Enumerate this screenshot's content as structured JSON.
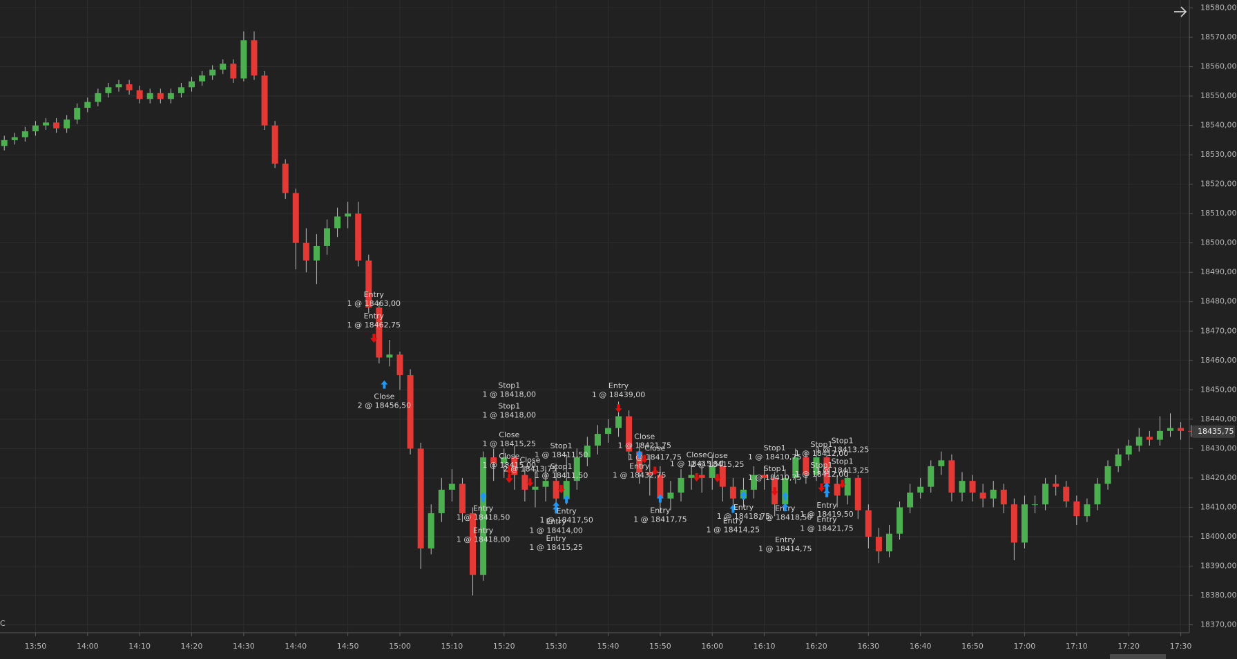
{
  "chart_data": {
    "type": "candlestick",
    "categories": [
      null,
      null,
      null,
      "13:50",
      null,
      null,
      null,
      null,
      "14:00",
      null,
      null,
      null,
      null,
      "14:10",
      null,
      null,
      null,
      null,
      "14:20",
      null,
      null,
      null,
      null,
      "14:30",
      null,
      null,
      null,
      null,
      "14:40",
      null,
      null,
      null,
      null,
      "14:50",
      null,
      null,
      null,
      null,
      "15:00",
      null,
      null,
      null,
      null,
      "15:10",
      null,
      null,
      null,
      null,
      "15:20",
      null,
      null,
      null,
      null,
      "15:30",
      null,
      null,
      null,
      null,
      "15:40",
      null,
      null,
      null,
      null,
      "15:50",
      null,
      null,
      null,
      null,
      "16:00",
      null,
      null,
      null,
      null,
      "16:10",
      null,
      null,
      null,
      null,
      "16:20",
      null,
      null,
      null,
      null,
      "16:30",
      null,
      null,
      null,
      null,
      "16:40",
      null,
      null,
      null,
      null,
      "16:50",
      null,
      null,
      null,
      null,
      "17:00",
      null,
      null,
      null,
      null,
      "17:10",
      null,
      null,
      null,
      null,
      "17:20",
      null,
      null,
      null,
      null,
      "17:30",
      null
    ],
    "open": [
      18533,
      18535,
      18536,
      18538,
      18540,
      18541,
      18539,
      18542,
      18546,
      18548,
      18551,
      18553,
      18554,
      18552,
      18549,
      18551,
      18549,
      18551,
      18553,
      18555,
      18557,
      18559,
      18561,
      18556,
      18569,
      18557,
      18540,
      18527,
      18517,
      18500,
      18494,
      18499,
      18505,
      18509,
      18510,
      18494,
      18478,
      18461,
      18462,
      18455,
      18430,
      18396,
      18408,
      18416,
      18418,
      18408,
      18387,
      18427,
      18425,
      18427,
      18421,
      18416,
      18417,
      18419,
      18413,
      18419,
      18427,
      18431,
      18435,
      18437,
      18441,
      18429,
      18422,
      18421,
      18413,
      18415,
      18420,
      18421,
      18420,
      18424,
      18417,
      18413,
      18416,
      18421,
      18420,
      18411,
      18420,
      18427,
      18421,
      18427,
      18418,
      18414,
      18420,
      18409,
      18400,
      18395,
      18401,
      18410,
      18415,
      18417,
      18424,
      18426,
      18415,
      18419,
      18415,
      18413,
      18416,
      18411,
      18398,
      18411,
      18411,
      18418,
      18417,
      18412,
      18407,
      18411,
      18418,
      18424,
      18428,
      18431,
      18434,
      18433,
      18436,
      18437,
      18436
    ],
    "high": [
      18536.5,
      18537.5,
      18539.5,
      18541.5,
      18542.5,
      18542.5,
      18543.5,
      18547.5,
      18549.5,
      18552.5,
      18554.5,
      18555.5,
      18555.5,
      18553.5,
      18552.5,
      18552.5,
      18552.5,
      18554.5,
      18556.5,
      18558.5,
      18560.5,
      18562.5,
      18562.5,
      18572,
      18572,
      18558.5,
      18541.5,
      18528.5,
      18518.5,
      18505,
      18503,
      18508,
      18512,
      18514,
      18514,
      18496,
      18480,
      18467,
      18463,
      18457,
      18432,
      18411,
      18420,
      18423,
      18420,
      18410,
      18429,
      18430,
      18430,
      18431,
      18424,
      18423,
      18424,
      18423,
      18428,
      18430,
      18434,
      18438,
      18440,
      18446,
      18443,
      18432,
      18428,
      18424,
      18419,
      18423,
      18425,
      18424,
      18428,
      18426,
      18420,
      18420,
      18424,
      18424,
      18422,
      18423,
      18430,
      18429,
      18430,
      18428,
      18421,
      18423,
      18421,
      18411,
      18403,
      18404,
      18412,
      18418,
      18420,
      18426,
      18429,
      18428,
      18422,
      18421,
      18418,
      18419,
      18418,
      18413,
      18414,
      18414,
      18420,
      18421,
      18419,
      18414,
      18413,
      18420,
      18426,
      18430,
      18433,
      18437,
      18436,
      18441,
      18442,
      18439,
      18438
    ],
    "low": [
      18531.5,
      18533.5,
      18534.5,
      18536.5,
      18538.5,
      18537.5,
      18537.5,
      18540.5,
      18544.5,
      18546.5,
      18549.5,
      18551.5,
      18550.5,
      18547.5,
      18547.5,
      18547.5,
      18547.5,
      18549.5,
      18551.5,
      18553.5,
      18555.5,
      18557.5,
      18554.5,
      18555,
      18555.5,
      18538.5,
      18525.5,
      18515,
      18491,
      18490,
      18486,
      18496,
      18502,
      18505,
      18492,
      18476,
      18459,
      18458,
      18450,
      18428,
      18389,
      18394,
      18405,
      18412,
      18405,
      18380,
      18385,
      18419,
      18420,
      18416,
      18412,
      18410,
      18412,
      18408,
      18411,
      18416,
      18424,
      18428,
      18432,
      18434,
      18426,
      18418,
      18414,
      18408,
      18409,
      18412,
      18416,
      18415,
      18416,
      18412,
      18409,
      18410,
      18413,
      18416,
      18407,
      18409,
      18418,
      18418,
      18419,
      18414,
      18410,
      18411,
      18406,
      18396,
      18391,
      18393,
      18399,
      18408,
      18413,
      18415,
      18421,
      18412,
      18412,
      18412,
      18410,
      18410,
      18408,
      18392,
      18396,
      18408,
      18409,
      18414,
      18410,
      18404,
      18405,
      18409,
      18416,
      18422,
      18426,
      18429,
      18431,
      18431,
      18434,
      18433,
      18434
    ],
    "close": [
      18535,
      18536,
      18538,
      18540,
      18541,
      18539,
      18542,
      18546,
      18548,
      18551,
      18553,
      18554,
      18552,
      18549,
      18551,
      18549,
      18551,
      18553,
      18555,
      18557,
      18559,
      18561,
      18556,
      18569,
      18557,
      18540,
      18527,
      18517,
      18500,
      18494,
      18499,
      18505,
      18509,
      18510,
      18494,
      18478,
      18461,
      18462,
      18455,
      18430,
      18396,
      18408,
      18416,
      18418,
      18408,
      18387,
      18427,
      18425,
      18427,
      18421,
      18416,
      18417,
      18419,
      18413,
      18419,
      18427,
      18431,
      18435,
      18437,
      18441,
      18429,
      18422,
      18421,
      18413,
      18415,
      18420,
      18421,
      18420,
      18424,
      18417,
      18413,
      18416,
      18421,
      18420,
      18411,
      18420,
      18427,
      18421,
      18427,
      18418,
      18414,
      18420,
      18409,
      18400,
      18395,
      18401,
      18410,
      18415,
      18417,
      18424,
      18426,
      18415,
      18419,
      18415,
      18413,
      18416,
      18411,
      18398,
      18411,
      18411,
      18418,
      18417,
      18412,
      18407,
      18411,
      18418,
      18424,
      18428,
      18431,
      18434,
      18433,
      18436,
      18437,
      18436,
      18435.75
    ],
    "up_color": "#4caf50",
    "down_color": "#e53935",
    "wick_color": "#bdbdbd",
    "ylim": [
      18367.3,
      18582.7
    ],
    "yticks": [
      {
        "value": 18370,
        "label": "18370,00"
      },
      {
        "value": 18380,
        "label": "18380,00"
      },
      {
        "value": 18390,
        "label": "18390,00"
      },
      {
        "value": 18400,
        "label": "18400,00"
      },
      {
        "value": 18410,
        "label": "18410,00"
      },
      {
        "value": 18420,
        "label": "18420,00"
      },
      {
        "value": 18430,
        "label": "18430,00"
      },
      {
        "value": 18440,
        "label": "18440,00"
      },
      {
        "value": 18450,
        "label": "18450,00"
      },
      {
        "value": 18460,
        "label": "18460,00"
      },
      {
        "value": 18470,
        "label": "18470,00"
      },
      {
        "value": 18480,
        "label": "18480,00"
      },
      {
        "value": 18490,
        "label": "18490,00"
      },
      {
        "value": 18500,
        "label": "18500,00"
      },
      {
        "value": 18510,
        "label": "18510,00"
      },
      {
        "value": 18520,
        "label": "18520,00"
      },
      {
        "value": 18530,
        "label": "18530,00"
      },
      {
        "value": 18540,
        "label": "18540,00"
      },
      {
        "value": 18550,
        "label": "18550,00"
      },
      {
        "value": 18560,
        "label": "18560,00"
      },
      {
        "value": 18570,
        "label": "18570,00"
      },
      {
        "value": 18580,
        "label": "18580,00"
      }
    ],
    "grid": true,
    "last_price": {
      "value": 18435.75,
      "label": "18435,75"
    },
    "buy_color": "#2196f3",
    "sell_color": "#e01010",
    "corner_label": "C",
    "executions": [
      {
        "time": "14:55",
        "side": "sell",
        "label": "Entry",
        "text": "1 @ 18462,75",
        "price": 18462.75
      },
      {
        "time": "14:55",
        "side": "sell",
        "label": "Entry",
        "text": "1 @ 18463,00",
        "price": 18463
      },
      {
        "time": "14:57",
        "side": "buy",
        "label": "Close",
        "text": "2 @ 18456,50",
        "price": 18456.5
      },
      {
        "time": "15:21",
        "side": "sell",
        "label": "Close",
        "text": "1 @ 18415,00",
        "price": 18415
      },
      {
        "time": "15:21",
        "side": "sell",
        "label": "Close",
        "text": "1 @ 18415,25",
        "price": 18415.25
      },
      {
        "time": "15:21",
        "side": "sell",
        "label": "Stop1",
        "text": "1 @ 18418,00",
        "price": 18418
      },
      {
        "time": "15:21",
        "side": "sell",
        "label": "Stop1",
        "text": "1 @ 18418,00",
        "price": 18418
      },
      {
        "time": "15:31",
        "side": "sell",
        "label": "Stop1",
        "text": "1 @ 18411,50",
        "price": 18411.5
      },
      {
        "time": "15:31",
        "side": "sell",
        "label": "Stop1",
        "text": "1 @ 18411,50",
        "price": 18411.5
      },
      {
        "time": "15:25",
        "side": "sell",
        "label": "Close",
        "text": "2 @ 18413,75",
        "price": 18413.75
      },
      {
        "time": "15:16",
        "side": "buy",
        "label": "Entry",
        "text": "1 @ 18418,50",
        "price": 18418.5
      },
      {
        "time": "15:16",
        "side": "buy",
        "label": "Entry",
        "text": "1 @ 18418,00",
        "price": 18418
      },
      {
        "time": "15:30",
        "side": "buy",
        "label": "Entry",
        "text": "1 @ 18414,00",
        "price": 18414
      },
      {
        "time": "15:30",
        "side": "buy",
        "label": "Entry",
        "text": "1 @ 18415,25",
        "price": 18415.25
      },
      {
        "time": "15:32",
        "side": "buy",
        "label": "Entry",
        "text": "1 @ 18417,50",
        "price": 18417.5
      },
      {
        "time": "15:42",
        "side": "sell",
        "label": "Entry",
        "text": "1 @ 18439,00",
        "price": 18439
      },
      {
        "time": "15:47",
        "side": "sell",
        "label": "Close",
        "text": "1 @ 18421,75",
        "price": 18421.75
      },
      {
        "time": "15:49",
        "side": "sell",
        "label": "Close",
        "text": "1 @ 18417,75",
        "price": 18417.75
      },
      {
        "time": "15:46",
        "side": "buy",
        "label": "Entry",
        "text": "1 @ 18432,75",
        "price": 18432.75
      },
      {
        "time": "15:50",
        "side": "buy",
        "label": "Entry",
        "text": "1 @ 18417,75",
        "price": 18417.75
      },
      {
        "time": "15:57",
        "side": "sell",
        "label": "Close",
        "text": "1 @ 18415,50",
        "price": 18415.5
      },
      {
        "time": "16:01",
        "side": "sell",
        "label": "Close",
        "text": "2 @ 18415,25",
        "price": 18415.25
      },
      {
        "time": "16:04",
        "side": "buy",
        "label": "Entry",
        "text": "1 @ 18414,25",
        "price": 18414.25
      },
      {
        "time": "16:06",
        "side": "buy",
        "label": "Entry",
        "text": "1 @ 18418,75",
        "price": 18418.75
      },
      {
        "time": "16:12",
        "side": "sell",
        "label": "Stop1",
        "text": "1 @ 18410,75",
        "price": 18410.75
      },
      {
        "time": "16:12",
        "side": "sell",
        "label": "Stop1",
        "text": "1 @ 18410,75",
        "price": 18410.75
      },
      {
        "time": "16:14",
        "side": "buy",
        "label": "Entry",
        "text": "1 @ 18418,50",
        "price": 18418.5
      },
      {
        "time": "16:14",
        "side": "buy",
        "label": "Entry",
        "text": "1 @ 18414,75",
        "price": 18414.75
      },
      {
        "time": "16:21",
        "side": "sell",
        "label": "Stop1",
        "text": "1 @ 18412,00",
        "price": 18412
      },
      {
        "time": "16:21",
        "side": "sell",
        "label": "Stop1",
        "text": "1 @ 18412,00",
        "price": 18412
      },
      {
        "time": "16:25",
        "side": "sell",
        "label": "Stop1",
        "text": "1 @ 18413,25",
        "price": 18413.25
      },
      {
        "time": "16:25",
        "side": "sell",
        "label": "Stop1",
        "text": "1 @ 18413,25",
        "price": 18413.25
      },
      {
        "time": "16:22",
        "side": "buy",
        "label": "Entry",
        "text": "1 @ 18419,50",
        "price": 18419.5
      },
      {
        "time": "16:22",
        "side": "buy",
        "label": "Entry",
        "text": "1 @ 18421,75",
        "price": 18421.75
      }
    ]
  }
}
